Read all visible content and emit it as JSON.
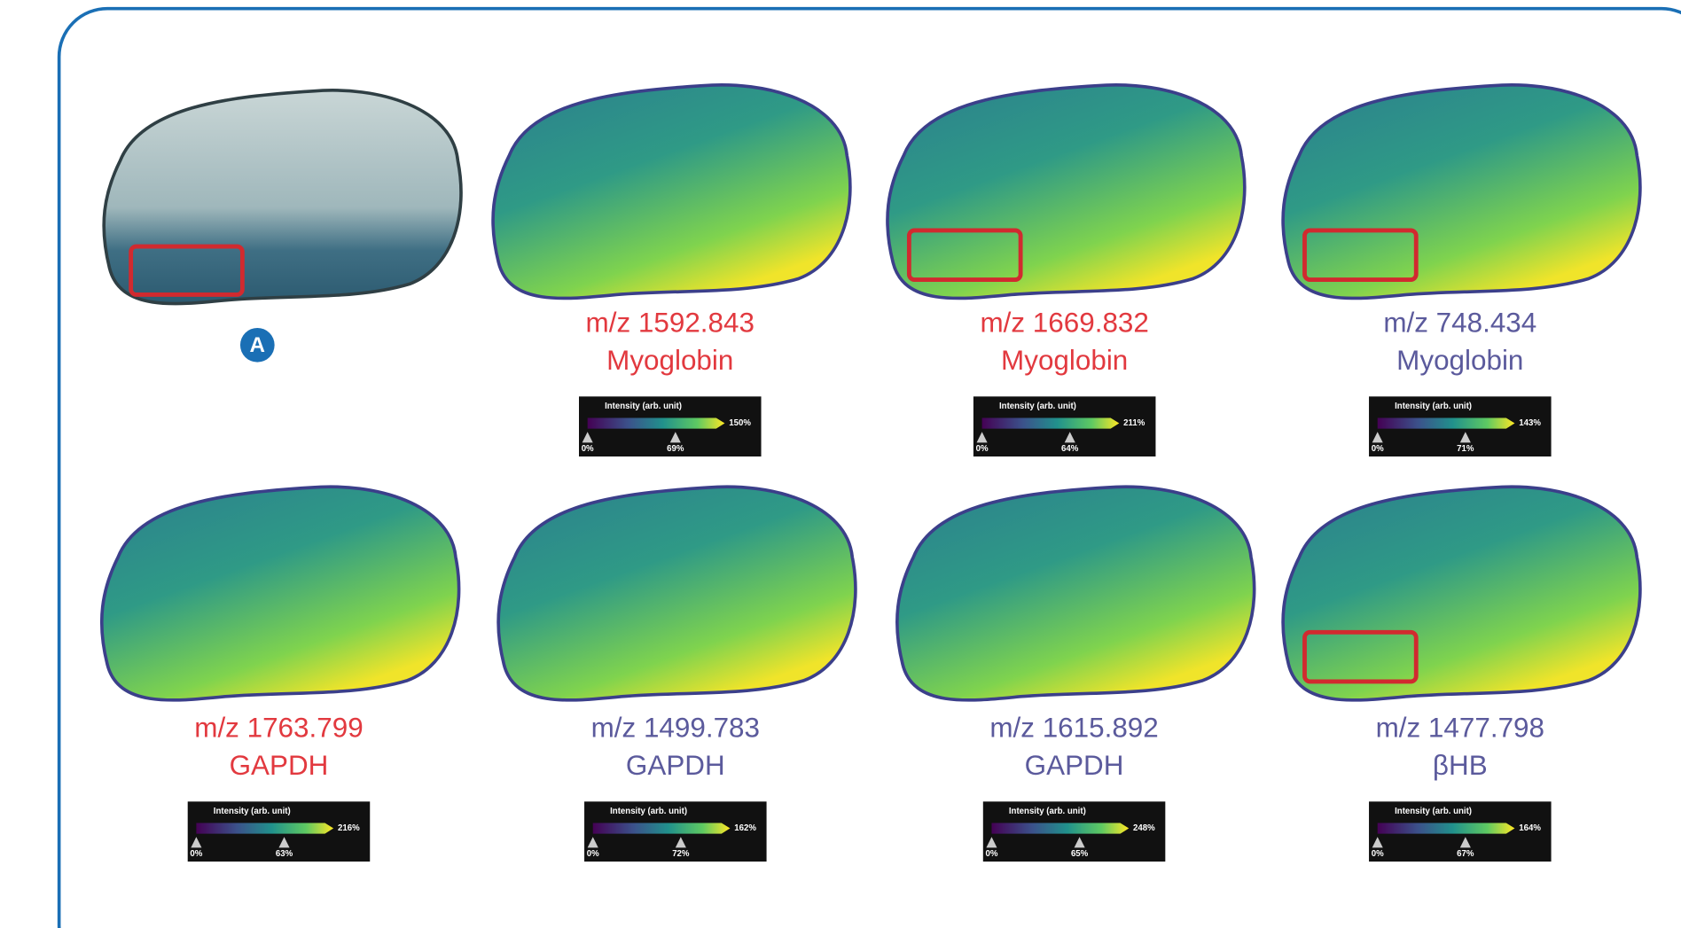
{
  "panel_label": "A",
  "panels": [
    {
      "mz": "m/z 1592.843",
      "name": "Myoglobin",
      "label_color": "#e2393f",
      "highlighted": false,
      "colorbar": {
        "title": "Intensity (arb. unit)",
        "min": "0%",
        "mid": "69%",
        "max": "150%"
      }
    },
    {
      "mz": "m/z 1669.832",
      "name": "Myoglobin",
      "label_color": "#e2393f",
      "highlighted": true,
      "colorbar": {
        "title": "Intensity (arb. unit)",
        "min": "0%",
        "mid": "64%",
        "max": "211%"
      }
    },
    {
      "mz": "m/z 748.434",
      "name": "Myoglobin",
      "label_color": "#5b5a9c",
      "highlighted": true,
      "colorbar": {
        "title": "Intensity (arb. unit)",
        "min": "0%",
        "mid": "71%",
        "max": "143%"
      }
    },
    {
      "mz": "m/z 1763.799",
      "name": "GAPDH",
      "label_color": "#e2393f",
      "highlighted": false,
      "colorbar": {
        "title": "Intensity (arb. unit)",
        "min": "0%",
        "mid": "63%",
        "max": "216%"
      }
    },
    {
      "mz": "m/z 1499.783",
      "name": "GAPDH",
      "label_color": "#5b5a9c",
      "highlighted": false,
      "colorbar": {
        "title": "Intensity (arb. unit)",
        "min": "0%",
        "mid": "72%",
        "max": "162%"
      }
    },
    {
      "mz": "m/z 1615.892",
      "name": "GAPDH",
      "label_color": "#5b5a9c",
      "highlighted": false,
      "colorbar": {
        "title": "Intensity (arb. unit)",
        "min": "0%",
        "mid": "65%",
        "max": "248%"
      }
    },
    {
      "mz": "m/z 1477.798",
      "name": "βHB",
      "label_color": "#5b5a9c",
      "highlighted": true,
      "colorbar": {
        "title": "Intensity (arb. unit)",
        "min": "0%",
        "mid": "67%",
        "max": "164%"
      }
    }
  ]
}
